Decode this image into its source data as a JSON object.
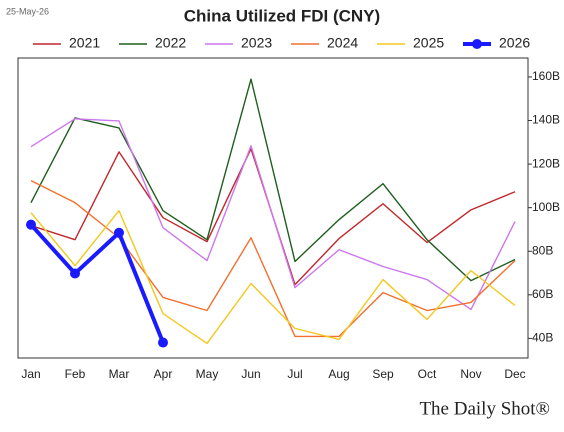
{
  "date_label": "25-May-26",
  "brand": "The Daily Shot®",
  "chart_data": {
    "type": "line",
    "title": "China Utilized FDI (CNY)",
    "categories": [
      "Jan",
      "Feb",
      "Mar",
      "Apr",
      "May",
      "Jun",
      "Jul",
      "Aug",
      "Sep",
      "Oct",
      "Nov",
      "Dec"
    ],
    "series": [
      {
        "name": "2021",
        "color": "#c0272d",
        "values": [
          91.8,
          85.3,
          125.6,
          95.4,
          84.4,
          127.0,
          64.7,
          85.8,
          101.8,
          84.0,
          99.0,
          107.3
        ]
      },
      {
        "name": "2022",
        "color": "#1e5e1e",
        "values": [
          102.3,
          141.2,
          136.6,
          98.6,
          85.3,
          159.0,
          75.3,
          94.5,
          111.0,
          85.3,
          66.5,
          76.2
        ]
      },
      {
        "name": "2023",
        "color": "#cc77ee",
        "values": [
          128.0,
          140.8,
          139.8,
          90.8,
          75.7,
          128.4,
          63.3,
          80.7,
          73.0,
          67.0,
          53.3,
          93.6
        ]
      },
      {
        "name": "2024",
        "color": "#f07030",
        "values": [
          112.4,
          102.3,
          86.2,
          58.8,
          52.8,
          86.2,
          40.9,
          40.9,
          61.0,
          52.8,
          56.5,
          75.7
        ]
      },
      {
        "name": "2025",
        "color": "#f2c81e",
        "values": [
          97.7,
          73.4,
          98.6,
          51.4,
          37.7,
          65.2,
          44.6,
          39.5,
          67.0,
          48.7,
          71.1,
          55.1
        ]
      },
      {
        "name": "2026",
        "color": "#1a1aff",
        "markers": true,
        "values": [
          92.2,
          69.8,
          88.5,
          38.1,
          null,
          null,
          null,
          null,
          null,
          null,
          null,
          null
        ]
      }
    ],
    "ylim": [
      31,
      168.7
    ],
    "yticks": [
      {
        "value": 40,
        "label": "40B"
      },
      {
        "value": 60,
        "label": "60B"
      },
      {
        "value": 80,
        "label": "80B"
      },
      {
        "value": 100,
        "label": "100B"
      },
      {
        "value": 120,
        "label": "120B"
      },
      {
        "value": 140,
        "label": "140B"
      },
      {
        "value": 160,
        "label": "160B"
      }
    ],
    "y_axis_side": "right",
    "grid": false,
    "legend": "top"
  }
}
